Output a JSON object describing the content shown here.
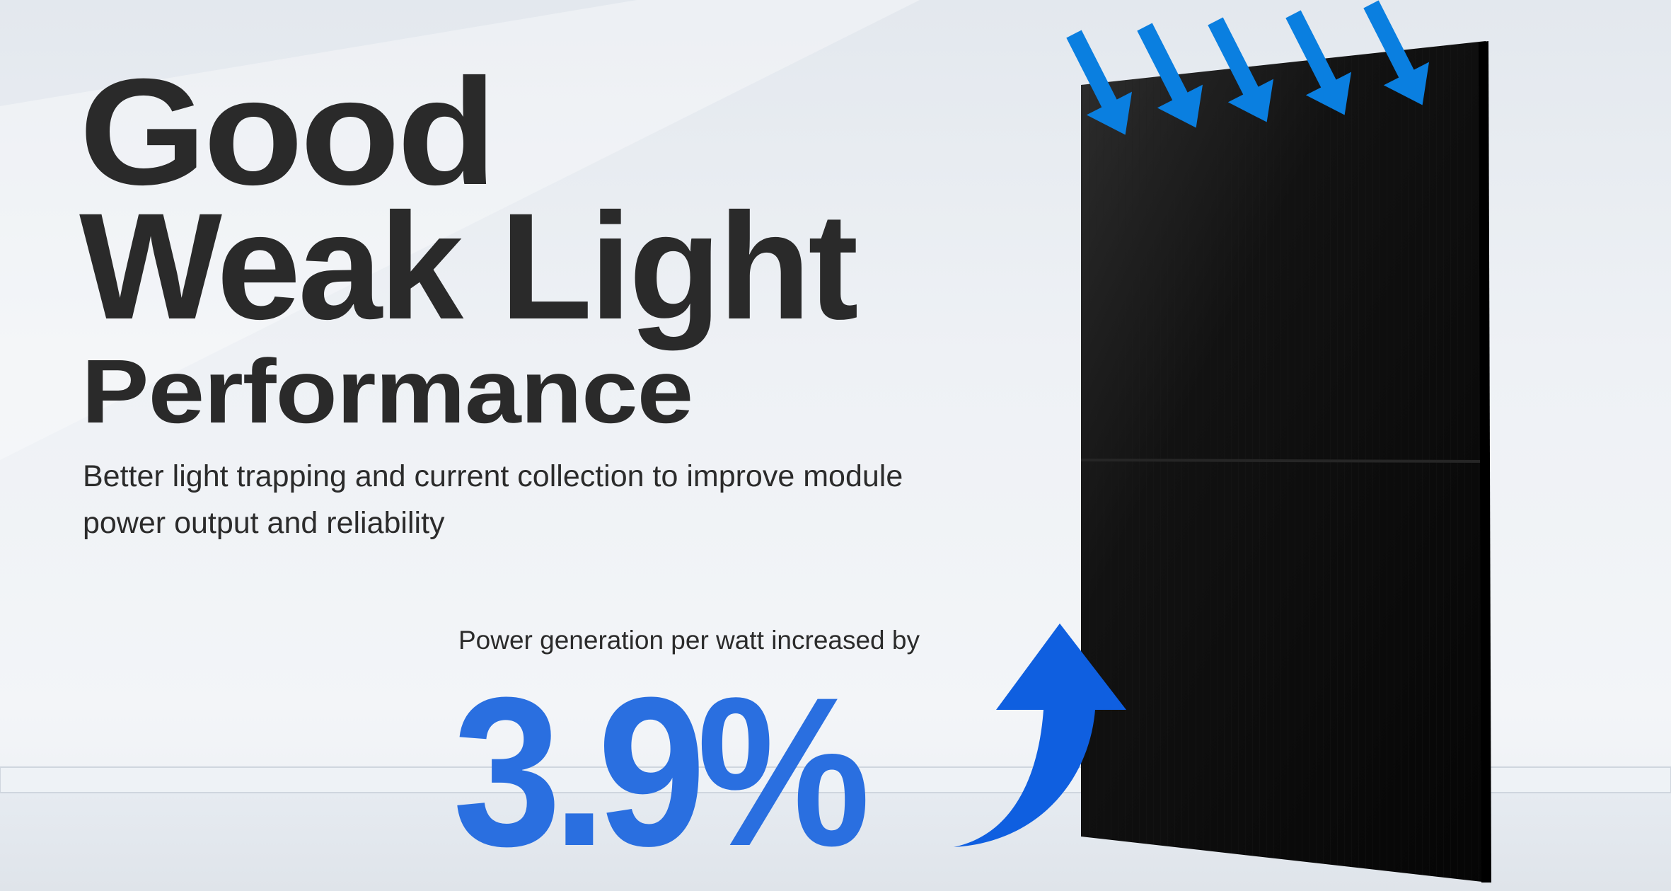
{
  "headline": {
    "line1": "Good",
    "line2": "Weak Light",
    "line3": "Performance"
  },
  "subtitle": "Better light trapping and current collection to improve module power output and reliability",
  "stat": {
    "label": "Power generation per watt increased by",
    "value": "3.9%"
  },
  "colors": {
    "accent_blue": "#2a6fe0",
    "arrow_blue": "#0a7fe0",
    "panel": "#0d0d0d",
    "headline": "#2a2a2a"
  },
  "icons": [
    "light-ray-arrow-icon",
    "increase-arrow-icon"
  ]
}
